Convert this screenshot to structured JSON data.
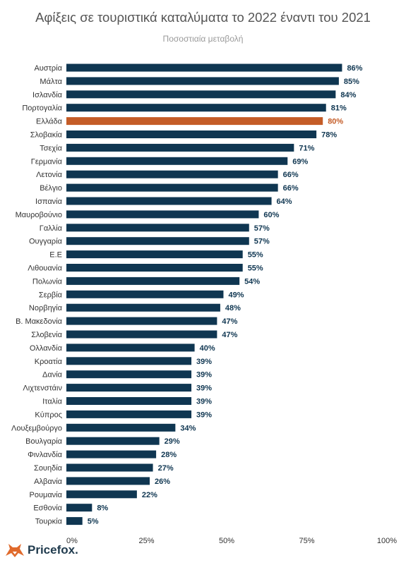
{
  "header": {
    "title": "Αφίξεις σε τουριστικά καταλύματα το 2022 έναντι του 2021",
    "subtitle": "Ποσοστιαία μεταβολή"
  },
  "brand": {
    "name": "Pricefox."
  },
  "colors": {
    "bar": "#0f3651",
    "highlight": "#c45c27",
    "label_normal": "#0f3651",
    "label_highlight": "#c45c27"
  },
  "chart_data": {
    "type": "bar",
    "orientation": "horizontal",
    "title": "Αφίξεις σε τουριστικά καταλύματα το 2022 έναντι του 2021",
    "subtitle": "Ποσοστιαία μεταβολή",
    "xlim": [
      0,
      100
    ],
    "xticks": [
      "0%",
      "25%",
      "50%",
      "75%",
      "100%"
    ],
    "highlight": "Ελλάδα",
    "grid": false,
    "categories": [
      "Αυστρία",
      "Μάλτα",
      "Ισλανδία",
      "Πορτογαλία",
      "Ελλάδα",
      "Σλοβακία",
      "Τσεχία",
      "Γερμανία",
      "Λετονία",
      "Βέλγιο",
      "Ισπανία",
      "Μαυροβούνιο",
      "Γαλλία",
      "Ουγγαρία",
      "Ε.Ε",
      "Λιθουανία",
      "Πολωνία",
      "Σερβία",
      "Νορβηγία",
      "Β. Μακεδονία",
      "Σλοβενία",
      "Ολλανδία",
      "Κροατία",
      "Δανία",
      "Λιχτενστάιν",
      "Ιταλία",
      "Κύπρος",
      "Λουξεμβούργο",
      "Βουλγαρία",
      "Φινλανδία",
      "Σουηδία",
      "Αλβανία",
      "Ρουμανία",
      "Εσθονία",
      "Τουρκία"
    ],
    "values": [
      86,
      85,
      84,
      81,
      80,
      78,
      71,
      69,
      66,
      66,
      64,
      60,
      57,
      57,
      55,
      55,
      54,
      49,
      48,
      47,
      47,
      40,
      39,
      39,
      39,
      39,
      39,
      34,
      29,
      28,
      27,
      26,
      22,
      8,
      5
    ],
    "value_labels": [
      "86%",
      "85%",
      "84%",
      "81%",
      "80%",
      "78%",
      "71%",
      "69%",
      "66%",
      "66%",
      "64%",
      "60%",
      "57%",
      "57%",
      "55%",
      "55%",
      "54%",
      "49%",
      "48%",
      "47%",
      "47%",
      "40%",
      "39%",
      "39%",
      "39%",
      "39%",
      "39%",
      "34%",
      "29%",
      "28%",
      "27%",
      "26%",
      "22%",
      "8%",
      "5%"
    ]
  }
}
